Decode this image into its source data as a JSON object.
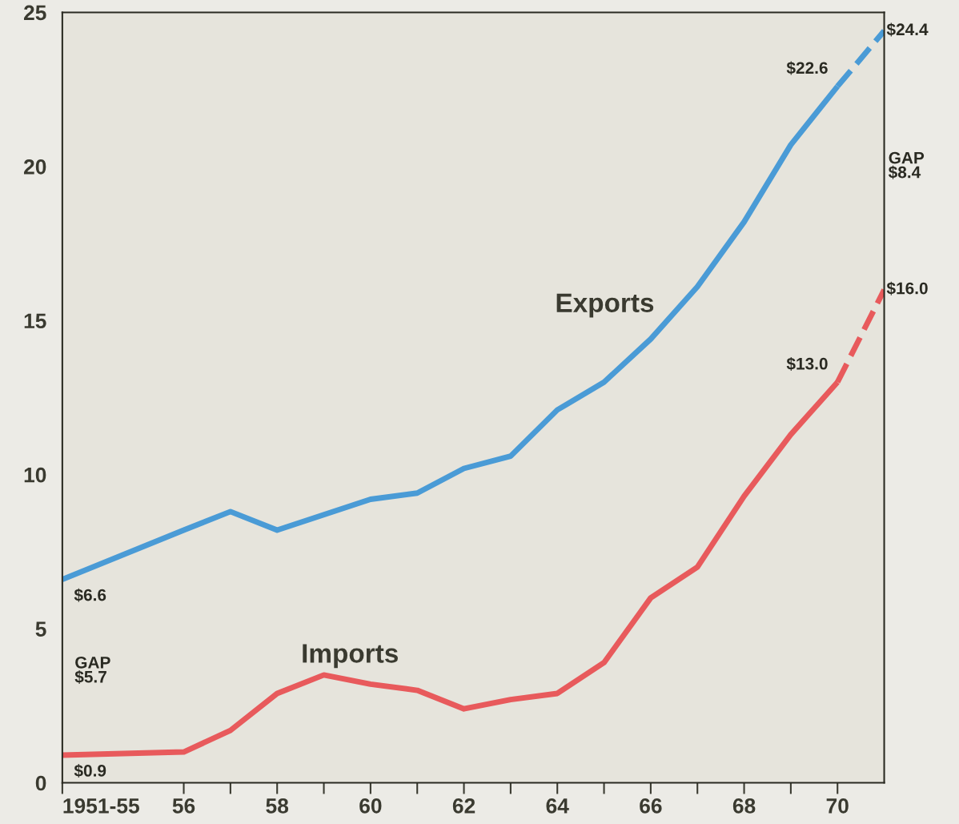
{
  "chart_data": {
    "type": "line",
    "series": [
      {
        "color": "#4a9bd6",
        "line_style": "solid",
        "x": [
          53.4,
          56,
          57,
          58,
          59,
          60,
          61,
          62,
          63,
          64,
          65,
          66,
          67,
          68,
          69,
          70
        ],
        "values": [
          6.6,
          8.2,
          8.8,
          8.2,
          8.7,
          9.2,
          9.4,
          10.2,
          10.6,
          12.1,
          13.0,
          14.4,
          16.1,
          18.2,
          20.7,
          22.6
        ]
      },
      {
        "color": "#4a9bd6",
        "line_style": "dashed",
        "x": [
          70,
          71
        ],
        "values": [
          22.6,
          24.4
        ]
      },
      {
        "color": "#e85a5c",
        "line_style": "solid",
        "x": [
          53.4,
          56,
          57,
          58,
          59,
          60,
          61,
          62,
          63,
          64,
          65,
          66,
          67,
          68,
          69,
          70
        ],
        "values": [
          0.9,
          1.0,
          1.7,
          2.9,
          3.5,
          3.2,
          3.0,
          2.4,
          2.7,
          2.9,
          3.9,
          6.0,
          7.0,
          9.3,
          11.3,
          13.0
        ]
      },
      {
        "color": "#e85a5c",
        "line_style": "dashed",
        "x": [
          70,
          71
        ],
        "values": [
          13.0,
          16.0
        ]
      }
    ],
    "xlim": [
      53.4,
      71
    ],
    "ylim": [
      0,
      25
    ],
    "xticks": [
      {
        "value": 53.4,
        "label": "1951-55"
      },
      56,
      {
        "value": 57,
        "label": null
      },
      58,
      {
        "value": 59,
        "label": null
      },
      60,
      {
        "value": 61,
        "label": null
      },
      62,
      {
        "value": 63,
        "label": null
      },
      64,
      {
        "value": 65,
        "label": null
      },
      66,
      {
        "value": 67,
        "label": null
      },
      68,
      {
        "value": 69,
        "label": null
      },
      70
    ],
    "yticks": [
      0,
      5,
      10,
      15,
      20,
      25
    ],
    "grid": false,
    "legend": false,
    "annotations": [
      "Exports",
      "Imports",
      {
        "text": "$6.6",
        "x": 53.4,
        "y": 6.6
      },
      {
        "text": "$0.9",
        "x": 53.4,
        "y": 0.9
      },
      "GAP\n$5.7",
      {
        "text": "$22.6",
        "x": 70,
        "y": 22.6
      },
      {
        "text": "$13.0",
        "x": 70,
        "y": 13.0
      },
      {
        "text": "$24.4",
        "x": 71,
        "y": 24.4
      },
      {
        "text": "$16.0",
        "x": 71,
        "y": 16.0
      },
      "GAP\n$8.4"
    ]
  }
}
